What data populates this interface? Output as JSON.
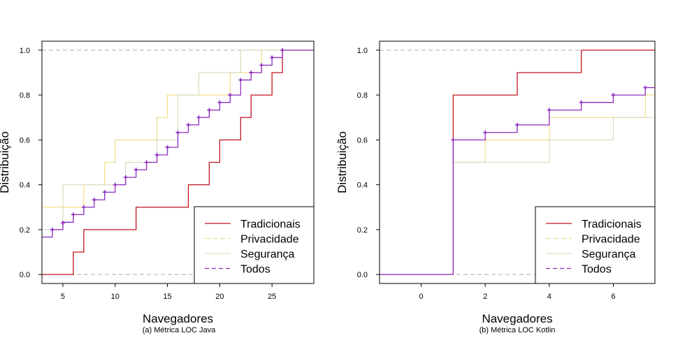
{
  "chart_data": [
    {
      "type": "line",
      "step": true,
      "caption": "(a) Métrica LOC Java",
      "xlabel": "Navegadores",
      "ylabel": "Distribuição",
      "xlim": [
        3,
        29
      ],
      "ylim": [
        -0.04,
        1.04
      ],
      "xticks": [
        5,
        10,
        15,
        20,
        25
      ],
      "yticks": [
        0.0,
        0.2,
        0.4,
        0.6,
        0.8,
        1.0
      ],
      "reference_lines": [
        0,
        1
      ],
      "legend_position": "bottom-right",
      "series": [
        {
          "name": "Tradicionais",
          "color": "#C0141E",
          "dash": "",
          "points": [
            [
              3,
              0
            ],
            [
              6,
              0
            ],
            [
              6,
              0.1
            ],
            [
              7,
              0.1
            ],
            [
              7,
              0.2
            ],
            [
              12,
              0.2
            ],
            [
              12,
              0.3
            ],
            [
              17,
              0.3
            ],
            [
              17,
              0.4
            ],
            [
              19,
              0.4
            ],
            [
              19,
              0.5
            ],
            [
              20,
              0.5
            ],
            [
              20,
              0.6
            ],
            [
              22,
              0.6
            ],
            [
              22,
              0.7
            ],
            [
              23,
              0.7
            ],
            [
              23,
              0.8
            ],
            [
              25,
              0.8
            ],
            [
              25,
              0.9
            ],
            [
              26,
              0.9
            ],
            [
              26,
              1.0
            ],
            [
              29,
              1.0
            ]
          ]
        },
        {
          "name": "Privacidade",
          "color": "#F0DF8C",
          "dash": "7,4",
          "points": [
            [
              3,
              0.3
            ],
            [
              7,
              0.3
            ],
            [
              7,
              0.4
            ],
            [
              9,
              0.4
            ],
            [
              9,
              0.5
            ],
            [
              10,
              0.5
            ],
            [
              10,
              0.6
            ],
            [
              13,
              0.6
            ],
            [
              13,
              0.6
            ],
            [
              14,
              0.6
            ],
            [
              14,
              0.7
            ],
            [
              15,
              0.7
            ],
            [
              15,
              0.8
            ],
            [
              18,
              0.8
            ],
            [
              18,
              0.8
            ],
            [
              21,
              0.8
            ],
            [
              21,
              0.9
            ],
            [
              24,
              0.9
            ],
            [
              24,
              1.0
            ],
            [
              29,
              1.0
            ]
          ]
        },
        {
          "name": "Segurança",
          "color": "#DDDCC2",
          "dash": "",
          "points": [
            [
              3,
              0.2
            ],
            [
              5,
              0.2
            ],
            [
              5,
              0.4
            ],
            [
              8,
              0.4
            ],
            [
              8,
              0.4
            ],
            [
              11,
              0.4
            ],
            [
              11,
              0.5
            ],
            [
              12,
              0.5
            ],
            [
              12,
              0.5
            ],
            [
              14,
              0.5
            ],
            [
              14,
              0.6
            ],
            [
              16,
              0.6
            ],
            [
              16,
              0.8
            ],
            [
              18,
              0.8
            ],
            [
              18,
              0.9
            ],
            [
              20,
              0.9
            ],
            [
              20,
              0.9
            ],
            [
              22,
              0.9
            ],
            [
              22,
              1.0
            ],
            [
              29,
              1.0
            ]
          ]
        },
        {
          "name": "Todos",
          "color": "#8B2BBE",
          "dash": "6,4",
          "markers": [
            [
              4,
              0.2
            ],
            [
              5,
              0.23
            ],
            [
              6,
              0.267
            ],
            [
              7,
              0.3
            ],
            [
              8,
              0.333
            ],
            [
              9,
              0.367
            ],
            [
              10,
              0.4
            ],
            [
              11,
              0.433
            ],
            [
              12,
              0.467
            ],
            [
              13,
              0.5
            ],
            [
              14,
              0.533
            ],
            [
              15,
              0.567
            ],
            [
              16,
              0.633
            ],
            [
              17,
              0.667
            ],
            [
              18,
              0.7
            ],
            [
              19,
              0.733
            ],
            [
              20,
              0.767
            ],
            [
              21,
              0.8
            ],
            [
              22,
              0.867
            ],
            [
              23,
              0.9
            ],
            [
              24,
              0.933
            ],
            [
              25,
              0.967
            ],
            [
              26,
              1.0
            ]
          ],
          "points": [
            [
              3,
              0.167
            ],
            [
              4,
              0.167
            ],
            [
              4,
              0.2
            ],
            [
              5,
              0.2
            ],
            [
              5,
              0.233
            ],
            [
              6,
              0.233
            ],
            [
              6,
              0.267
            ],
            [
              7,
              0.267
            ],
            [
              7,
              0.3
            ],
            [
              8,
              0.3
            ],
            [
              8,
              0.333
            ],
            [
              9,
              0.333
            ],
            [
              9,
              0.367
            ],
            [
              10,
              0.367
            ],
            [
              10,
              0.4
            ],
            [
              11,
              0.4
            ],
            [
              11,
              0.433
            ],
            [
              12,
              0.433
            ],
            [
              12,
              0.467
            ],
            [
              13,
              0.467
            ],
            [
              13,
              0.5
            ],
            [
              14,
              0.5
            ],
            [
              14,
              0.533
            ],
            [
              15,
              0.533
            ],
            [
              15,
              0.567
            ],
            [
              16,
              0.567
            ],
            [
              16,
              0.633
            ],
            [
              17,
              0.633
            ],
            [
              17,
              0.667
            ],
            [
              18,
              0.667
            ],
            [
              18,
              0.7
            ],
            [
              19,
              0.7
            ],
            [
              19,
              0.733
            ],
            [
              20,
              0.733
            ],
            [
              20,
              0.767
            ],
            [
              21,
              0.767
            ],
            [
              21,
              0.8
            ],
            [
              22,
              0.8
            ],
            [
              22,
              0.867
            ],
            [
              23,
              0.867
            ],
            [
              23,
              0.9
            ],
            [
              24,
              0.9
            ],
            [
              24,
              0.933
            ],
            [
              25,
              0.933
            ],
            [
              25,
              0.967
            ],
            [
              26,
              0.967
            ],
            [
              26,
              1.0
            ],
            [
              29,
              1.0
            ]
          ]
        }
      ]
    },
    {
      "type": "line",
      "step": true,
      "caption": "(b) Métrica LOC Kotlin",
      "xlabel": "Navegadores",
      "ylabel": "Distribuição",
      "xlim": [
        -1.3,
        7.3
      ],
      "ylim": [
        -0.04,
        1.04
      ],
      "xticks": [
        0,
        2,
        4,
        6
      ],
      "yticks": [
        0.0,
        0.2,
        0.4,
        0.6,
        0.8,
        1.0
      ],
      "reference_lines": [
        0,
        1
      ],
      "legend_position": "bottom-right",
      "series": [
        {
          "name": "Tradicionais",
          "color": "#C0141E",
          "dash": "",
          "points": [
            [
              -1.3,
              0
            ],
            [
              1,
              0
            ],
            [
              1,
              0.8
            ],
            [
              3,
              0.8
            ],
            [
              3,
              0.9
            ],
            [
              5,
              0.9
            ],
            [
              5,
              1.0
            ],
            [
              7.3,
              1.0
            ]
          ]
        },
        {
          "name": "Privacidade",
          "color": "#F0DF8C",
          "dash": "7,4",
          "points": [
            [
              -1.3,
              0
            ],
            [
              1,
              0
            ],
            [
              1,
              0.5
            ],
            [
              2,
              0.5
            ],
            [
              2,
              0.6
            ],
            [
              4,
              0.6
            ],
            [
              4,
              0.7
            ],
            [
              7,
              0.7
            ],
            [
              7,
              0.8
            ],
            [
              7.3,
              0.8
            ]
          ]
        },
        {
          "name": "Segurança",
          "color": "#DDDCC2",
          "dash": "",
          "points": [
            [
              -1.3,
              0
            ],
            [
              1,
              0
            ],
            [
              1,
              0.5
            ],
            [
              4,
              0.5
            ],
            [
              4,
              0.6
            ],
            [
              6,
              0.6
            ],
            [
              6,
              0.7
            ],
            [
              7.3,
              0.7
            ]
          ]
        },
        {
          "name": "Todos",
          "color": "#8B2BBE",
          "dash": "6,4",
          "markers": [
            [
              1,
              0.6
            ],
            [
              2,
              0.633
            ],
            [
              3,
              0.667
            ],
            [
              4,
              0.733
            ],
            [
              5,
              0.767
            ],
            [
              6,
              0.8
            ],
            [
              7,
              0.833
            ]
          ],
          "points": [
            [
              -1.3,
              0
            ],
            [
              1,
              0
            ],
            [
              1,
              0.6
            ],
            [
              2,
              0.6
            ],
            [
              2,
              0.633
            ],
            [
              3,
              0.633
            ],
            [
              3,
              0.667
            ],
            [
              4,
              0.667
            ],
            [
              4,
              0.733
            ],
            [
              5,
              0.733
            ],
            [
              5,
              0.767
            ],
            [
              6,
              0.767
            ],
            [
              6,
              0.8
            ],
            [
              7,
              0.8
            ],
            [
              7,
              0.833
            ],
            [
              7.3,
              0.833
            ]
          ]
        }
      ]
    }
  ]
}
